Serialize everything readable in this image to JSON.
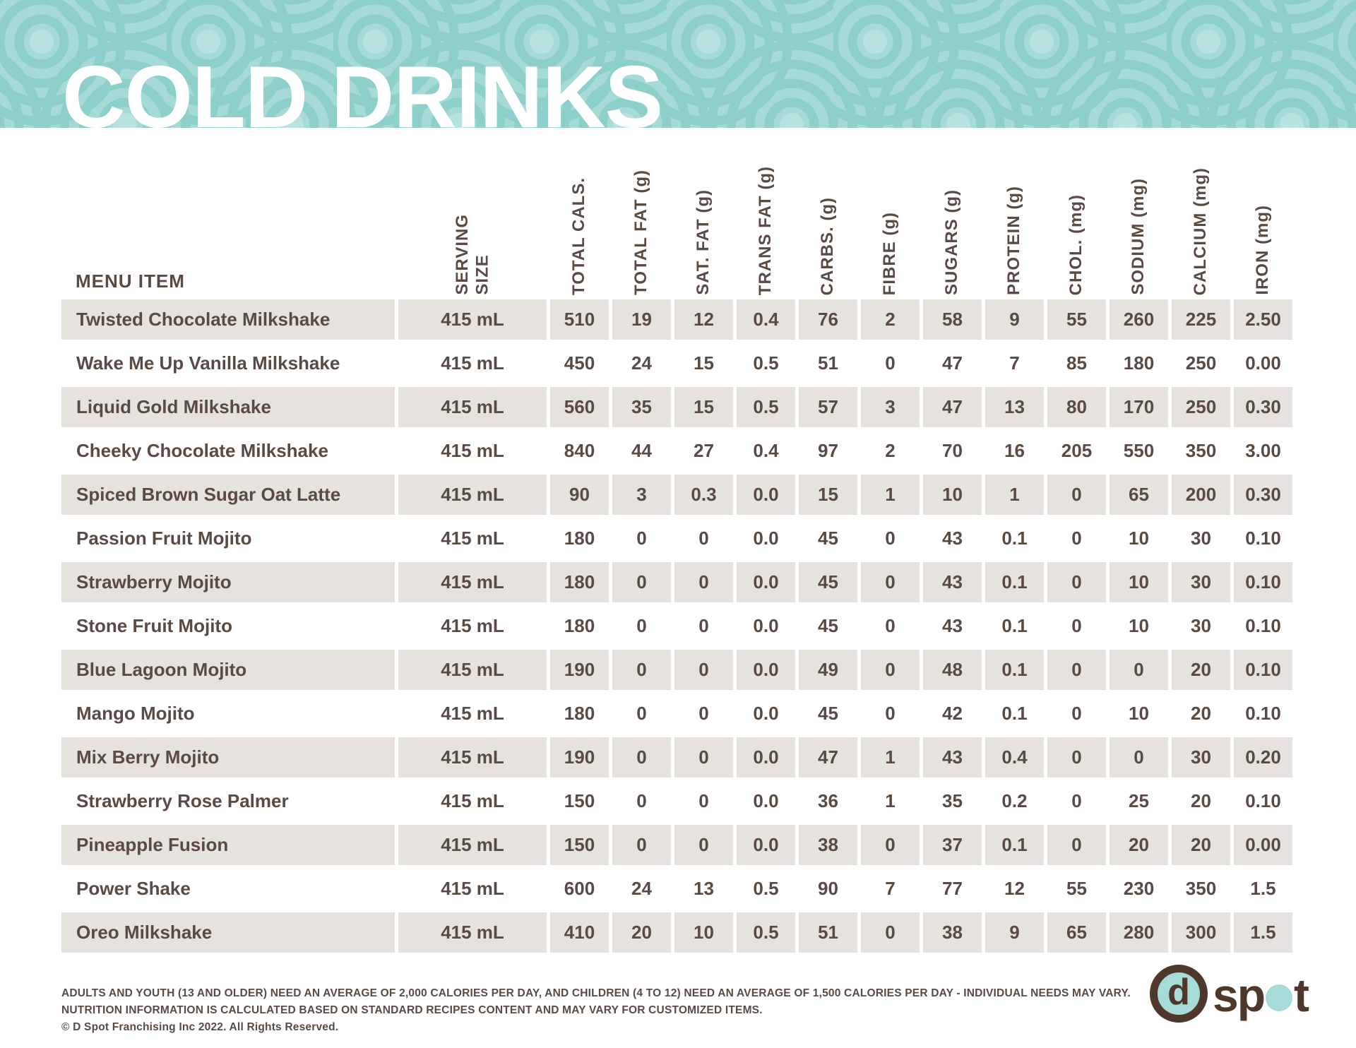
{
  "title": "COLD DRINKS",
  "table": {
    "menu_item_header": "MENU ITEM",
    "columns": [
      "SERVING\nSIZE",
      "TOTAL CALS.",
      "TOTAL FAT (g)",
      "SAT. FAT (g)",
      "TRANS FAT (g)",
      "CARBS. (g)",
      "FIBRE (g)",
      "SUGARS (g)",
      "PROTEIN (g)",
      "CHOL. (mg)",
      "SODIUM (mg)",
      "CALCIUM (mg)",
      "IRON (mg)"
    ],
    "rows": [
      {
        "name": "Twisted Chocolate Milkshake",
        "values": [
          "415 mL",
          "510",
          "19",
          "12",
          "0.4",
          "76",
          "2",
          "58",
          "9",
          "55",
          "260",
          "225",
          "2.50"
        ]
      },
      {
        "name": "Wake Me Up Vanilla Milkshake",
        "values": [
          "415 mL",
          "450",
          "24",
          "15",
          "0.5",
          "51",
          "0",
          "47",
          "7",
          "85",
          "180",
          "250",
          "0.00"
        ]
      },
      {
        "name": "Liquid Gold Milkshake",
        "values": [
          "415 mL",
          "560",
          "35",
          "15",
          "0.5",
          "57",
          "3",
          "47",
          "13",
          "80",
          "170",
          "250",
          "0.30"
        ]
      },
      {
        "name": "Cheeky Chocolate Milkshake",
        "values": [
          "415 mL",
          "840",
          "44",
          "27",
          "0.4",
          "97",
          "2",
          "70",
          "16",
          "205",
          "550",
          "350",
          "3.00"
        ]
      },
      {
        "name": "Spiced Brown Sugar Oat Latte",
        "values": [
          "415 mL",
          "90",
          "3",
          "0.3",
          "0.0",
          "15",
          "1",
          "10",
          "1",
          "0",
          "65",
          "200",
          "0.30"
        ]
      },
      {
        "name": "Passion Fruit Mojito",
        "values": [
          "415 mL",
          "180",
          "0",
          "0",
          "0.0",
          "45",
          "0",
          "43",
          "0.1",
          "0",
          "10",
          "30",
          "0.10"
        ]
      },
      {
        "name": "Strawberry Mojito",
        "values": [
          "415 mL",
          "180",
          "0",
          "0",
          "0.0",
          "45",
          "0",
          "43",
          "0.1",
          "0",
          "10",
          "30",
          "0.10"
        ]
      },
      {
        "name": "Stone Fruit Mojito",
        "values": [
          "415 mL",
          "180",
          "0",
          "0",
          "0.0",
          "45",
          "0",
          "43",
          "0.1",
          "0",
          "10",
          "30",
          "0.10"
        ]
      },
      {
        "name": "Blue Lagoon Mojito",
        "values": [
          "415 mL",
          "190",
          "0",
          "0",
          "0.0",
          "49",
          "0",
          "48",
          "0.1",
          "0",
          "0",
          "20",
          "0.10"
        ]
      },
      {
        "name": "Mango Mojito",
        "values": [
          "415 mL",
          "180",
          "0",
          "0",
          "0.0",
          "45",
          "0",
          "42",
          "0.1",
          "0",
          "10",
          "20",
          "0.10"
        ]
      },
      {
        "name": "Mix Berry Mojito",
        "values": [
          "415 mL",
          "190",
          "0",
          "0",
          "0.0",
          "47",
          "1",
          "43",
          "0.4",
          "0",
          "0",
          "30",
          "0.20"
        ]
      },
      {
        "name": "Strawberry Rose Palmer",
        "values": [
          "415 mL",
          "150",
          "0",
          "0",
          "0.0",
          "36",
          "1",
          "35",
          "0.2",
          "0",
          "25",
          "20",
          "0.10"
        ]
      },
      {
        "name": "Pineapple Fusion",
        "values": [
          "415 mL",
          "150",
          "0",
          "0",
          "0.0",
          "38",
          "0",
          "37",
          "0.1",
          "0",
          "20",
          "20",
          "0.00"
        ]
      },
      {
        "name": "Power Shake",
        "values": [
          "415 mL",
          "600",
          "24",
          "13",
          "0.5",
          "90",
          "7",
          "77",
          "12",
          "55",
          "230",
          "350",
          "1.5"
        ]
      },
      {
        "name": "Oreo Milkshake",
        "values": [
          "415 mL",
          "410",
          "20",
          "10",
          "0.5",
          "51",
          "0",
          "38",
          "9",
          "65",
          "280",
          "300",
          "1.5"
        ]
      }
    ]
  },
  "footer": {
    "line1": "ADULTS AND YOUTH (13 AND OLDER) NEED AN AVERAGE OF 2,000 CALORIES PER DAY, AND CHILDREN (4 TO 12) NEED AN AVERAGE OF 1,500 CALORIES PER DAY - INDIVIDUAL NEEDS MAY VARY.",
    "line2": "NUTRITION INFORMATION IS CALCULATED BASED ON STANDARD RECIPES CONTENT AND MAY VARY FOR CUSTOMIZED ITEMS.",
    "line3": "© D Spot Franchising Inc 2022. All Rights Reserved."
  },
  "logo": {
    "mark": "d",
    "word_start": "sp",
    "word_o": "o",
    "word_end": "t"
  },
  "colors": {
    "banner_teal": "#a6dad7",
    "banner_ring": "#8ccfcb",
    "banner_ring_center": "#b7e2df",
    "text_brown": "#594a42",
    "row_gray": "#e6e2de",
    "logo_brown": "#4d382b",
    "logo_teal": "#a7dbd8"
  }
}
